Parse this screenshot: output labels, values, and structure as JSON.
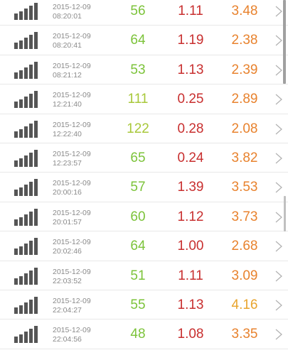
{
  "rows": [
    {
      "date": "2015-12-09",
      "time": "08:20:01",
      "v1": "56",
      "v2": "1.11",
      "v3": "3.48"
    },
    {
      "date": "2015-12-09",
      "time": "08:20:41",
      "v1": "64",
      "v2": "1.19",
      "v3": "2.38"
    },
    {
      "date": "2015-12-09",
      "time": "08:21:12",
      "v1": "53",
      "v2": "1.13",
      "v3": "2.39"
    },
    {
      "date": "2015-12-09",
      "time": "12:21:40",
      "v1": "111",
      "v2": "0.25",
      "v3": "2.89"
    },
    {
      "date": "2015-12-09",
      "time": "12:22:40",
      "v1": "122",
      "v2": "0.28",
      "v3": "2.08"
    },
    {
      "date": "2015-12-09",
      "time": "12:23:57",
      "v1": "65",
      "v2": "0.24",
      "v3": "3.82"
    },
    {
      "date": "2015-12-09",
      "time": "20:00:16",
      "v1": "57",
      "v2": "1.39",
      "v3": "3.53"
    },
    {
      "date": "2015-12-09",
      "time": "20:01:57",
      "v1": "60",
      "v2": "1.12",
      "v3": "3.73"
    },
    {
      "date": "2015-12-09",
      "time": "20:02:46",
      "v1": "64",
      "v2": "1.00",
      "v3": "2.68"
    },
    {
      "date": "2015-12-09",
      "time": "22:03:52",
      "v1": "51",
      "v2": "1.11",
      "v3": "3.09"
    },
    {
      "date": "2015-12-09",
      "time": "22:04:27",
      "v1": "55",
      "v2": "1.13",
      "v3": "4.16"
    },
    {
      "date": "2015-12-09",
      "time": "22:04:56",
      "v1": "48",
      "v2": "1.08",
      "v3": "3.35"
    }
  ],
  "icons": {
    "signal": "signal-strength-icon",
    "chevron": "chevron-right-icon"
  },
  "colors": {
    "v1": "#7cc33a",
    "v1_high": "#a8c83a",
    "v2": "#c82f2f",
    "v3": "#e8822d",
    "v3_alt": "#e8a42d"
  }
}
